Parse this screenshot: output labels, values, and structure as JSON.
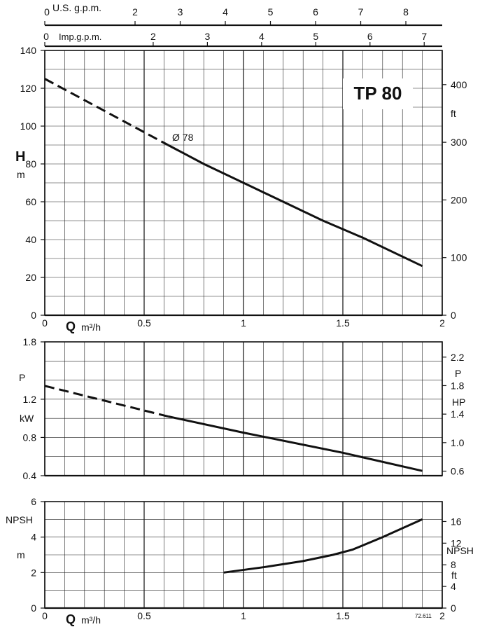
{
  "title": "TP 80",
  "impeller_label": "Ø 78",
  "code": "72.611",
  "top_axes": {
    "usgpm": {
      "label": "U.S. g.p.m.",
      "ticks": [
        "0",
        "2",
        "3",
        "4",
        "5",
        "6",
        "7",
        "8"
      ],
      "values": [
        0,
        2,
        3,
        4,
        5,
        6,
        7,
        8
      ]
    },
    "impgpm": {
      "label": "Imp.g.p.m.",
      "ticks": [
        "0",
        "2",
        "3",
        "4",
        "5",
        "6",
        "7"
      ],
      "values": [
        0,
        2,
        3,
        4,
        5,
        6,
        7
      ]
    }
  },
  "q_axis": {
    "label_bold": "Q",
    "unit": "m³/h",
    "ticks": [
      "0",
      "0.5",
      "1",
      "1.5",
      "2"
    ],
    "values": [
      0,
      0.5,
      1,
      1.5,
      2
    ]
  },
  "chart_data": [
    {
      "type": "line",
      "panel": "head",
      "ylabel_bold": "H",
      "ylabel_unit": "m",
      "ylim": [
        0,
        140
      ],
      "xlim": [
        0,
        2
      ],
      "yticks": [
        "0",
        "20",
        "40",
        "60",
        "80",
        "100",
        "120",
        "140"
      ],
      "yticks_values": [
        0,
        20,
        40,
        60,
        80,
        100,
        120,
        140
      ],
      "right_axis": {
        "unit": "ft",
        "ticks": [
          "0",
          "100",
          "200",
          "300",
          "400"
        ],
        "values": [
          0,
          100,
          200,
          300,
          400
        ]
      },
      "grid": true,
      "series": [
        {
          "name": "Ø 78",
          "dashed_segment": {
            "x": [
              0,
              0.62
            ],
            "y": [
              125,
              90
            ]
          },
          "solid_segment": {
            "x": [
              0.62,
              0.8,
              1.0,
              1.2,
              1.4,
              1.6,
              1.9
            ],
            "y": [
              90,
              80,
              70,
              60,
              50,
              41,
              26
            ]
          }
        }
      ]
    },
    {
      "type": "line",
      "panel": "power",
      "ylabel": "P",
      "ylabel_unit": "kW",
      "ylim": [
        0.4,
        1.8
      ],
      "xlim": [
        0,
        2
      ],
      "yticks": [
        "0.4",
        "0.8",
        "1.2",
        "1.8"
      ],
      "yticks_values": [
        0.4,
        0.8,
        1.2,
        1.8
      ],
      "right_axis": {
        "label": "P",
        "unit": "HP",
        "ticks": [
          "0.6",
          "1.0",
          "1.4",
          "1.8",
          "2.2"
        ],
        "values": [
          0.6,
          1.0,
          1.4,
          1.8,
          2.2
        ]
      },
      "grid": true,
      "series": [
        {
          "dashed_segment": {
            "x": [
              0,
              0.62
            ],
            "y": [
              1.34,
              1.02
            ]
          },
          "solid_segment": {
            "x": [
              0.62,
              1.0,
              1.5,
              1.9
            ],
            "y": [
              1.02,
              0.85,
              0.64,
              0.45
            ]
          }
        }
      ]
    },
    {
      "type": "line",
      "panel": "npsh",
      "ylabel": "NPSH",
      "ylabel_unit": "m",
      "ylim": [
        0,
        6
      ],
      "xlim": [
        0,
        2
      ],
      "yticks": [
        "0",
        "2",
        "4",
        "6"
      ],
      "yticks_values": [
        0,
        2,
        4,
        6
      ],
      "right_axis": {
        "label": "NPSH",
        "unit": "ft",
        "ticks": [
          "0",
          "4",
          "8",
          "12",
          "16"
        ],
        "values": [
          0,
          4,
          8,
          12,
          16
        ]
      },
      "grid": true,
      "series": [
        {
          "x": [
            0.9,
            1.1,
            1.3,
            1.45,
            1.55,
            1.7,
            1.9
          ],
          "y": [
            2.0,
            2.3,
            2.65,
            3.0,
            3.3,
            4.0,
            5.0
          ]
        }
      ]
    }
  ]
}
